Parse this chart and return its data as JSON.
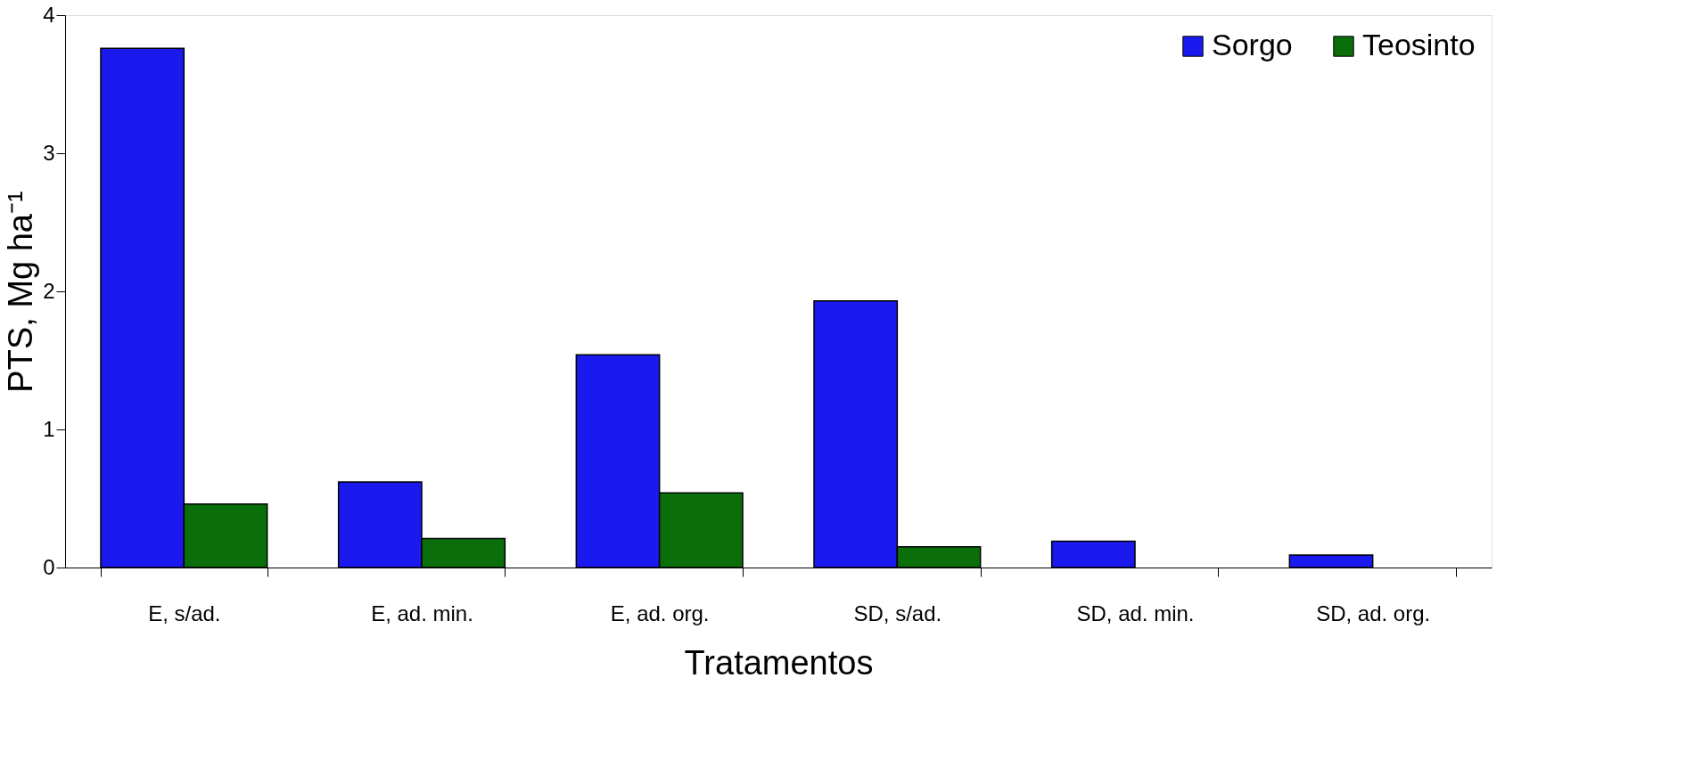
{
  "chart_data": {
    "type": "bar",
    "xlabel": "Tratamentos",
    "ylabel": "PTS, Mg ha⁻¹",
    "categories": [
      "E, s/ad.",
      "E, ad. min.",
      "E, ad. org.",
      "SD, s/ad.",
      "SD, ad. min.",
      "SD, ad. org."
    ],
    "series": [
      {
        "name": "Sorgo",
        "color": "#1a1aee",
        "values": [
          3.76,
          0.62,
          1.54,
          1.93,
          0.19,
          0.09
        ]
      },
      {
        "name": "Teosinto",
        "color": "#0a6e0a",
        "values": [
          0.46,
          0.21,
          0.54,
          0.15,
          null,
          null
        ]
      }
    ],
    "ylim": [
      0,
      4
    ],
    "yticks": [
      0,
      1,
      2,
      3,
      4
    ],
    "grid": false,
    "legend": "top right"
  }
}
